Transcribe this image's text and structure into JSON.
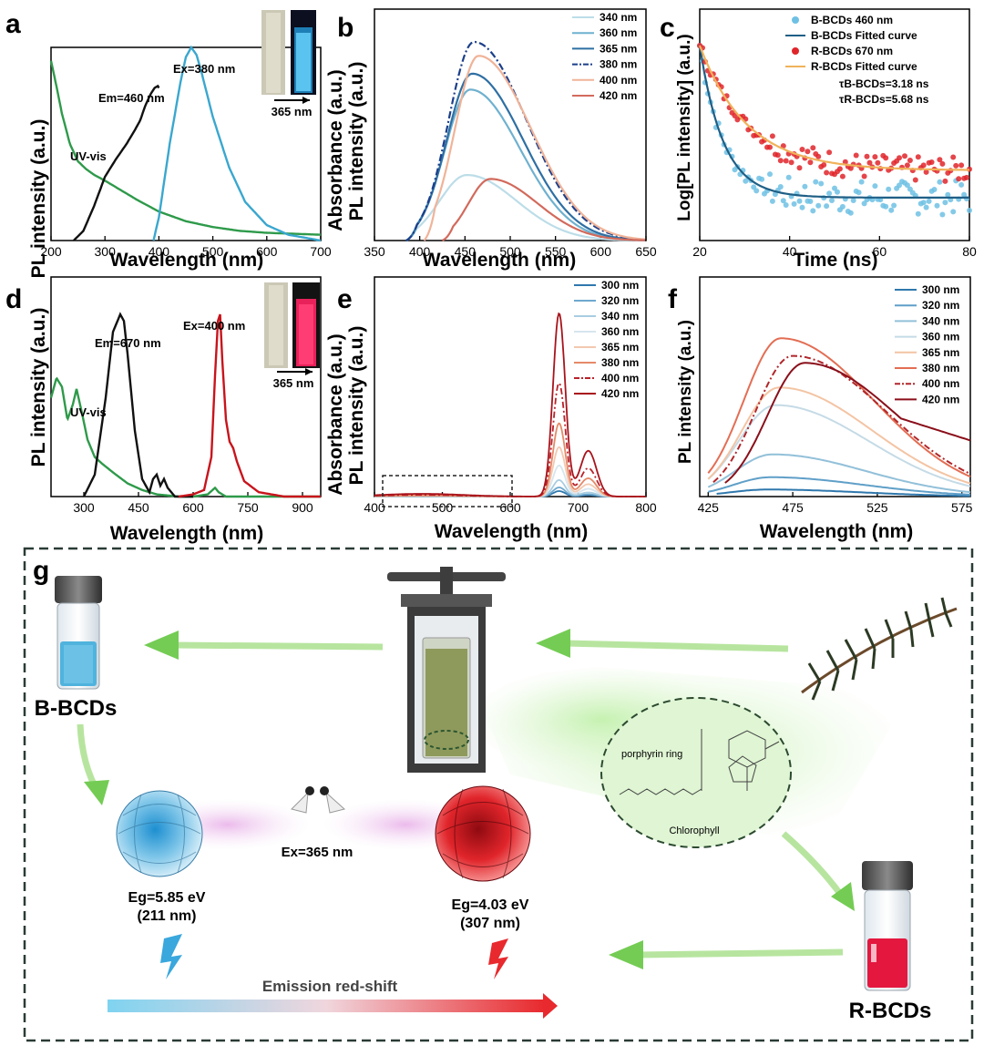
{
  "panels": {
    "a": {
      "letter": "a",
      "ylabel": "PL intensity (a.u.)",
      "xlabel": "Wavelength (nm)",
      "uvvis": "UV-vis",
      "em": "Em=460 nm",
      "ex": "Ex=380 nm",
      "uv_tag": "365 nm"
    },
    "b": {
      "letter": "b",
      "ylabel_top": "Absorbance (a.u.)",
      "ylabel": "PL intensity (a.u.)",
      "xlabel": "Wavelength (nm)"
    },
    "c": {
      "letter": "c",
      "ylabel": "Log[PL intensity] (a.u.)",
      "xlabel": "Time (ns)",
      "tau_b": "τB-BCDs=3.18 ns",
      "tau_r": "τR-BCDs=5.68 ns"
    },
    "d": {
      "letter": "d",
      "ylabel": "PL intensity (a.u.)",
      "xlabel": "Wavelength (nm)",
      "uvvis": "UV-vis",
      "em": "Em=670 nm",
      "ex": "Ex=400 nm",
      "uv_tag": "365 nm"
    },
    "e": {
      "letter": "e",
      "ylabel_top": "Absorbance (a.u.)",
      "ylabel": "PL intensity (a.u.)",
      "xlabel": "Wavelength (nm)"
    },
    "f": {
      "letter": "f",
      "ylabel": "PL intensity (a.u.)",
      "xlabel": "Wavelength (nm)"
    }
  },
  "scheme": {
    "letter": "g",
    "b_bcds": "B-BCDs",
    "r_bcds": "R-BCDs",
    "ex": "Ex=365 nm",
    "eg_b": "Eg=5.85 eV",
    "eg_b_nm": "(211 nm)",
    "eg_r": "Eg=4.03 eV",
    "eg_r_nm": "(307 nm)",
    "porphyrin": "porphyrin ring",
    "chlorophyll": "Chlorophyll",
    "redshift": "Emission red-shift"
  },
  "colors": {
    "green": "#2e9a4a",
    "black": "#111111",
    "blue": "#3aa7cf",
    "red": "#c8141c",
    "dash": "#3a3a3a",
    "arrow_green": "#8fd66a"
  },
  "chart_data": [
    {
      "id": "a",
      "type": "line",
      "xlim": [
        200,
        700
      ],
      "xticks": [
        200,
        300,
        400,
        500,
        600,
        700
      ],
      "series": [
        {
          "name": "UV-vis",
          "color": "#2e9a4a",
          "x": [
            200,
            210,
            220,
            235,
            250,
            265,
            280,
            300,
            330,
            360,
            400,
            450,
            500,
            550,
            600,
            650,
            700
          ],
          "y": [
            0.93,
            0.8,
            0.66,
            0.5,
            0.41,
            0.37,
            0.34,
            0.31,
            0.26,
            0.21,
            0.15,
            0.1,
            0.07,
            0.05,
            0.04,
            0.035,
            0.03
          ]
        },
        {
          "name": "Em=460 nm",
          "color": "#111111",
          "x": [
            242,
            260,
            280,
            300,
            320,
            340,
            355,
            365,
            375,
            385,
            392,
            398,
            400
          ],
          "y": [
            0.0,
            0.05,
            0.18,
            0.33,
            0.42,
            0.5,
            0.57,
            0.62,
            0.7,
            0.76,
            0.79,
            0.8,
            0.79
          ]
        },
        {
          "name": "Ex=380 nm",
          "color": "#3aa7cf",
          "x": [
            390,
            400,
            420,
            440,
            450,
            460,
            470,
            480,
            500,
            530,
            560,
            600,
            640,
            680,
            700
          ],
          "y": [
            0.0,
            0.12,
            0.5,
            0.82,
            0.95,
            1.0,
            0.96,
            0.86,
            0.64,
            0.38,
            0.2,
            0.08,
            0.03,
            0.01,
            0.0
          ]
        }
      ]
    },
    {
      "id": "b",
      "type": "line",
      "xlim": [
        350,
        650
      ],
      "xticks": [
        350,
        400,
        450,
        500,
        550,
        600,
        650
      ],
      "series": [
        {
          "name": "340 nm",
          "color": "#bcdde8",
          "peak": 452,
          "amp": 0.33,
          "sig_l": 30,
          "sig_r": 55,
          "start": 385
        },
        {
          "name": "360 nm",
          "color": "#6fb1cf",
          "peak": 456,
          "amp": 0.76,
          "sig_l": 28,
          "sig_r": 55,
          "start": 385
        },
        {
          "name": "365 nm",
          "color": "#2e6fa3",
          "peak": 458,
          "amp": 0.84,
          "sig_l": 28,
          "sig_r": 56,
          "start": 385
        },
        {
          "name": "380 nm",
          "color": "#1c3f8a",
          "peak": 460,
          "amp": 1.0,
          "sig_l": 28,
          "sig_r": 58,
          "start": 385,
          "dash": true
        },
        {
          "name": "400 nm",
          "color": "#f0b398",
          "peak": 465,
          "amp": 0.93,
          "sig_l": 26,
          "sig_r": 58,
          "start": 405
        },
        {
          "name": "420 nm",
          "color": "#d26a5c",
          "peak": 478,
          "amp": 0.31,
          "sig_l": 24,
          "sig_r": 52,
          "start": 425
        }
      ]
    },
    {
      "id": "c",
      "type": "scatter",
      "xlim": [
        20,
        80
      ],
      "xticks": [
        20,
        40,
        60,
        80
      ],
      "series": [
        {
          "name": "B-BCDs 460 nm",
          "color": "#6ec1e4",
          "marker": "circle",
          "k": 0.19,
          "floor": 0.22,
          "spread": 0.08
        },
        {
          "name": "B-BCDs Fitted curve",
          "color": "#1f5f86",
          "k": 0.19,
          "floor": 0.22
        },
        {
          "name": "R-BCDs 670 nm",
          "color": "#e0252a",
          "marker": "circle",
          "k": 0.095,
          "floor": 0.36,
          "spread": 0.06
        },
        {
          "name": "R-BCDs Fitted curve",
          "color": "#f0b25a",
          "k": 0.095,
          "floor": 0.36
        }
      ]
    },
    {
      "id": "d",
      "type": "line",
      "xlim": [
        210,
        950
      ],
      "xticks": [
        300,
        450,
        600,
        750,
        900
      ],
      "series": [
        {
          "name": "UV-vis",
          "color": "#2e9a4a",
          "x": [
            210,
            225,
            240,
            255,
            270,
            280,
            295,
            310,
            330,
            350,
            380,
            420,
            460,
            500,
            560,
            600,
            640,
            660,
            670,
            690,
            720,
            950
          ],
          "y": [
            0.45,
            0.54,
            0.5,
            0.35,
            0.42,
            0.49,
            0.38,
            0.26,
            0.18,
            0.15,
            0.11,
            0.06,
            0.03,
            0.01,
            0.0,
            0.0,
            0.01,
            0.04,
            0.02,
            0.0,
            0.0,
            0.0
          ]
        },
        {
          "name": "Em=670 nm",
          "color": "#111111",
          "x": [
            300,
            330,
            360,
            380,
            400,
            410,
            420,
            440,
            460,
            480,
            490,
            500,
            510,
            520,
            530,
            550,
            600
          ],
          "y": [
            0.0,
            0.1,
            0.45,
            0.75,
            0.83,
            0.8,
            0.65,
            0.3,
            0.08,
            0.02,
            0.08,
            0.1,
            0.05,
            0.08,
            0.04,
            0.0,
            0.0
          ]
        },
        {
          "name": "Ex=400 nm",
          "color": "#c8141c",
          "x": [
            560,
            600,
            630,
            650,
            660,
            668,
            674,
            680,
            690,
            700,
            710,
            720,
            740,
            780,
            850,
            950
          ],
          "y": [
            0.0,
            0.01,
            0.03,
            0.18,
            0.55,
            0.8,
            0.83,
            0.62,
            0.35,
            0.25,
            0.22,
            0.16,
            0.07,
            0.02,
            0.0,
            0.0
          ]
        }
      ]
    },
    {
      "id": "e",
      "type": "line",
      "xlim": [
        400,
        800
      ],
      "xticks": [
        400,
        500,
        600,
        700,
        800
      ],
      "series": [
        {
          "name": "300 nm",
          "color": "#2f78ad",
          "amp": 0.03
        },
        {
          "name": "320 nm",
          "color": "#6ea9cf",
          "amp": 0.05
        },
        {
          "name": "340 nm",
          "color": "#a9cde1",
          "amp": 0.09
        },
        {
          "name": "360 nm",
          "color": "#d7e6ee",
          "amp": 0.17
        },
        {
          "name": "365 nm",
          "color": "#f3c9b0",
          "amp": 0.27
        },
        {
          "name": "380 nm",
          "color": "#e48a68",
          "amp": 0.4
        },
        {
          "name": "400 nm",
          "color": "#b8222a",
          "amp": 0.62,
          "dash": true
        },
        {
          "name": "420 nm",
          "color": "#a8141c",
          "amp": 1.0
        }
      ]
    },
    {
      "id": "f",
      "type": "line",
      "xlim": [
        420,
        580
      ],
      "xticks": [
        425,
        475,
        525,
        575
      ],
      "series": [
        {
          "name": "300 nm",
          "color": "#2f78ad",
          "amp": 0.04,
          "peak": 460,
          "start": 430
        },
        {
          "name": "320 nm",
          "color": "#5f9fc8",
          "amp": 0.11,
          "peak": 462,
          "start": 425
        },
        {
          "name": "340 nm",
          "color": "#92c0d9",
          "amp": 0.24,
          "peak": 463,
          "start": 425
        },
        {
          "name": "360 nm",
          "color": "#c5dbe6",
          "amp": 0.52,
          "peak": 465,
          "start": 425
        },
        {
          "name": "365 nm",
          "color": "#f3c4a4",
          "amp": 0.62,
          "peak": 467,
          "start": 425
        },
        {
          "name": "380 nm",
          "color": "#e36e54",
          "amp": 0.9,
          "peak": 468,
          "start": 425
        },
        {
          "name": "400 nm",
          "color": "#b0262a",
          "amp": 0.8,
          "peak": 475,
          "start": 428,
          "dash": true
        },
        {
          "name": "420 nm",
          "color": "#8a0f1a",
          "amp": 0.76,
          "peak": 482,
          "start": 435
        }
      ]
    }
  ]
}
